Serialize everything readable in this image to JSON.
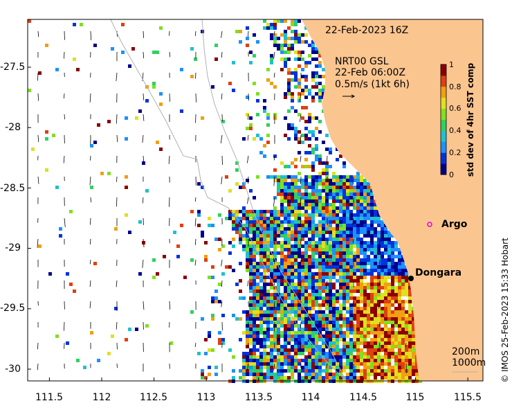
{
  "title": "22-Feb-2023 16Z",
  "current_info": {
    "line1": "NRT00 GSL",
    "line2": "22-Feb 06:00Z",
    "line3": "0.5m/s (1kt 6h)"
  },
  "colorbar": {
    "label": "std dev of 4hr SST comp",
    "ticks": [
      "0",
      "0.2",
      "0.4",
      "0.6",
      "0.8",
      "1"
    ],
    "colors": [
      "#00008b",
      "#0033dd",
      "#1e90ff",
      "#20c0d0",
      "#30d060",
      "#80e020",
      "#e0e020",
      "#f0a010",
      "#e04010",
      "#8b0000"
    ]
  },
  "places": [
    {
      "name": "Argo",
      "lon": 114.98,
      "lat": -28.82,
      "marker": "circle-magenta"
    },
    {
      "name": "Dongara",
      "lon": 114.93,
      "lat": -29.25,
      "marker": "dot-black"
    }
  ],
  "isobath_legend": [
    "200m",
    "1000m"
  ],
  "x_ticks": [
    "111.5",
    "112",
    "112.5",
    "113",
    "113.5",
    "114",
    "114.5",
    "115",
    "115.5"
  ],
  "y_ticks": [
    "-27.5",
    "-28",
    "-28.5",
    "-29",
    "-29.5",
    "-30"
  ],
  "credit": "© IMOS 25-Feb-2023 15:33 Hobart",
  "colors": {
    "land": "#fbc590",
    "sea": "#ffffff",
    "isobath": "#b0b0b0",
    "argo": "#e000e0"
  }
}
